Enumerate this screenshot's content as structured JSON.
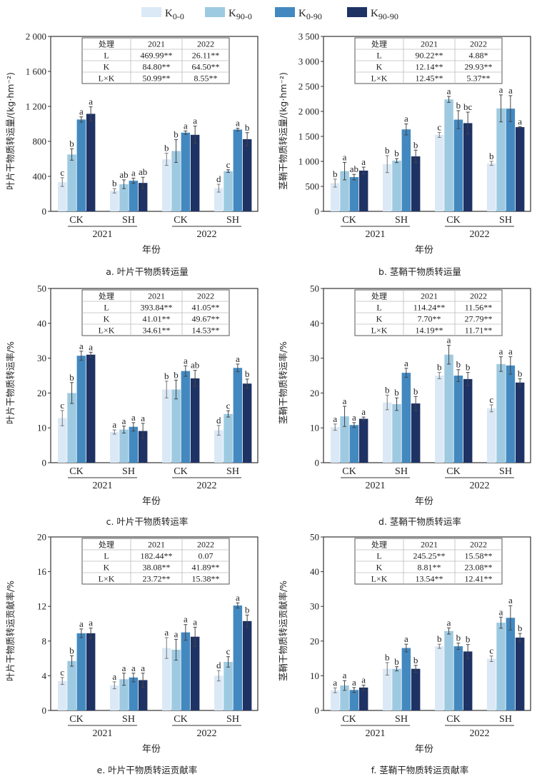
{
  "legend": [
    {
      "label": "K",
      "sub": "0-0",
      "color": "#dbe9f6"
    },
    {
      "label": "K",
      "sub": "90-0",
      "color": "#9ecae1"
    },
    {
      "label": "K",
      "sub": "0-90",
      "color": "#4389c0"
    },
    {
      "label": "K",
      "sub": "90-90",
      "color": "#1e3264"
    }
  ],
  "chart_data": [
    {
      "type": "bar",
      "caption": "a.  叶片干物质转运量",
      "ylabel": "叶片干物质转运量/(kg·hm⁻²)",
      "xlabel": "年份",
      "ylim": [
        0,
        2000
      ],
      "yticks": [
        0,
        400,
        800,
        1200,
        1600,
        2000
      ],
      "ytick_labels": [
        "0",
        "400",
        "800",
        "1 200",
        "1 600",
        "2 000"
      ],
      "groups": [
        {
          "year": "2021",
          "site": "CK"
        },
        {
          "year": "2021",
          "site": "SH"
        },
        {
          "year": "2022",
          "site": "CK"
        },
        {
          "year": "2022",
          "site": "SH"
        }
      ],
      "series": [
        {
          "name": "K0-0",
          "values": [
            335,
            235,
            595,
            265
          ],
          "errors": [
            50,
            25,
            70,
            45
          ],
          "letters": [
            "c",
            "b",
            "b",
            "d"
          ]
        },
        {
          "name": "K90-0",
          "values": [
            650,
            310,
            690,
            460
          ],
          "errors": [
            65,
            50,
            130,
            15
          ],
          "letters": [
            "b",
            "ab",
            "b",
            "c"
          ]
        },
        {
          "name": "K0-90",
          "values": [
            1050,
            350,
            900,
            935
          ],
          "errors": [
            30,
            30,
            20,
            15
          ],
          "letters": [
            "a",
            "a",
            "a",
            "a"
          ]
        },
        {
          "name": "K90-90",
          "values": [
            1115,
            325,
            875,
            825
          ],
          "errors": [
            80,
            65,
            100,
            75
          ],
          "letters": [
            "a",
            "ab",
            "a",
            "b"
          ]
        }
      ],
      "table": {
        "header": [
          "处理",
          "2021",
          "2022"
        ],
        "rows": [
          [
            "L",
            "469.99**",
            "26.11**"
          ],
          [
            "K",
            "84.80**",
            "64.50**"
          ],
          [
            "L×K",
            "50.99**",
            "8.55**"
          ]
        ]
      }
    },
    {
      "type": "bar",
      "caption": "b.  茎鞘干物质转运量",
      "ylabel": "茎鞘干物质转运量/(kg·hm⁻²)",
      "xlabel": "年份",
      "ylim": [
        0,
        3500
      ],
      "yticks": [
        0,
        500,
        1000,
        1500,
        2000,
        2500,
        3000,
        3500
      ],
      "ytick_labels": [
        "0",
        "500",
        "1 000",
        "1 500",
        "2 000",
        "2 500",
        "3 000",
        "3 500"
      ],
      "groups": [
        {
          "year": "2021",
          "site": "CK"
        },
        {
          "year": "2021",
          "site": "SH"
        },
        {
          "year": "2022",
          "site": "CK"
        },
        {
          "year": "2022",
          "site": "SH"
        }
      ],
      "series": [
        {
          "name": "K0-0",
          "values": [
            565,
            945,
            1530,
            960
          ],
          "errors": [
            80,
            170,
            50,
            40
          ],
          "letters": [
            "b",
            "b",
            "c",
            "b"
          ]
        },
        {
          "name": "K90-0",
          "values": [
            805,
            1015,
            2240,
            2060
          ],
          "errors": [
            175,
            40,
            60,
            270
          ],
          "letters": [
            "a",
            "b",
            "a",
            "a"
          ]
        },
        {
          "name": "K0-90",
          "values": [
            685,
            1640,
            1835,
            2055
          ],
          "errors": [
            55,
            110,
            180,
            260
          ],
          "letters": [
            "ab",
            "a",
            "b",
            "a"
          ]
        },
        {
          "name": "K90-90",
          "values": [
            815,
            1100,
            1765,
            1685
          ],
          "errors": [
            70,
            125,
            220,
            10
          ],
          "letters": [
            "a",
            "b",
            "bc",
            "a"
          ]
        }
      ],
      "table": {
        "header": [
          "处理",
          "2021",
          "2022"
        ],
        "rows": [
          [
            "L",
            "90.22**",
            "4.88*"
          ],
          [
            "K",
            "12.14**",
            "29.93**"
          ],
          [
            "L×K",
            "12.45**",
            "5.37**"
          ]
        ]
      }
    },
    {
      "type": "bar",
      "caption": "c.  叶片干物质转运率",
      "ylabel": "叶片干物质转运率/%",
      "xlabel": "年份",
      "ylim": [
        0,
        50
      ],
      "yticks": [
        0,
        10,
        20,
        30,
        40,
        50
      ],
      "ytick_labels": [
        "0",
        "10",
        "20",
        "30",
        "40",
        "50"
      ],
      "groups": [
        {
          "year": "2021",
          "site": "CK"
        },
        {
          "year": "2021",
          "site": "SH"
        },
        {
          "year": "2022",
          "site": "CK"
        },
        {
          "year": "2022",
          "site": "SH"
        }
      ],
      "series": [
        {
          "name": "K0-0",
          "values": [
            12.8,
            8.8,
            21.0,
            9.3
          ],
          "errors": [
            2.2,
            0.6,
            2.4,
            1.4
          ],
          "letters": [
            "c",
            "a",
            "b",
            "d"
          ]
        },
        {
          "name": "K90-0",
          "values": [
            20.0,
            9.5,
            21.0,
            14.0
          ],
          "errors": [
            3.0,
            1.0,
            2.7,
            0.9
          ],
          "letters": [
            "b",
            "a",
            "b",
            "c"
          ]
        },
        {
          "name": "K0-90",
          "values": [
            30.7,
            10.3,
            26.3,
            27.2
          ],
          "errors": [
            1.3,
            1.2,
            1.5,
            1.1
          ],
          "letters": [
            "a",
            "a",
            "a",
            "a"
          ]
        },
        {
          "name": "K90-90",
          "values": [
            31.0,
            9.1,
            24.2,
            22.7
          ],
          "errors": [
            0.7,
            2.2,
            2.3,
            1.3
          ],
          "letters": [
            "a",
            "a",
            "ab",
            "b"
          ]
        }
      ],
      "table": {
        "header": [
          "处理",
          "2021",
          "2022"
        ],
        "rows": [
          [
            "L",
            "393.84**",
            "41.05**"
          ],
          [
            "K",
            "41.01**",
            "49.67**"
          ],
          [
            "L×K",
            "34.61**",
            "14.53**"
          ]
        ]
      }
    },
    {
      "type": "bar",
      "caption": "d.  茎鞘干物质转运率",
      "ylabel": "茎鞘干物质转运率/%",
      "xlabel": "年份",
      "ylim": [
        0,
        50
      ],
      "yticks": [
        0,
        10,
        20,
        30,
        40,
        50
      ],
      "ytick_labels": [
        "0",
        "10",
        "20",
        "30",
        "40",
        "50"
      ],
      "groups": [
        {
          "year": "2021",
          "site": "CK"
        },
        {
          "year": "2021",
          "site": "SH"
        },
        {
          "year": "2022",
          "site": "CK"
        },
        {
          "year": "2022",
          "site": "SH"
        }
      ],
      "series": [
        {
          "name": "K0-0",
          "values": [
            10.2,
            17.3,
            25.0,
            15.6
          ],
          "errors": [
            0.9,
            2.1,
            0.9,
            1.0
          ],
          "letters": [
            "a",
            "b",
            "b",
            "c"
          ]
        },
        {
          "name": "K90-0",
          "values": [
            13.3,
            16.8,
            31.0,
            28.3
          ],
          "errors": [
            2.9,
            1.8,
            2.7,
            2.1
          ],
          "letters": [
            "a",
            "b",
            "a",
            "a"
          ]
        },
        {
          "name": "K0-90",
          "values": [
            10.8,
            25.8,
            25.0,
            27.9
          ],
          "errors": [
            0.7,
            1.3,
            1.7,
            2.5
          ],
          "letters": [
            "a",
            "a",
            "b",
            "a"
          ]
        },
        {
          "name": "K90-90",
          "values": [
            12.6,
            17.0,
            24.0,
            23.0
          ],
          "errors": [
            0.5,
            2.0,
            1.9,
            1.1
          ],
          "letters": [
            "a",
            "b",
            "b",
            "b"
          ]
        }
      ],
      "table": {
        "header": [
          "处理",
          "2021",
          "2022"
        ],
        "rows": [
          [
            "L",
            "114.24**",
            "11.56**"
          ],
          [
            "K",
            "7.70**",
            "27.79**"
          ],
          [
            "L×K",
            "14.19**",
            "11.71**"
          ]
        ]
      }
    },
    {
      "type": "bar",
      "caption": "e.  叶片干物质转运贡献率",
      "ylabel": "叶片干物质转运贡献率/%",
      "xlabel": "年份",
      "ylim": [
        0,
        20
      ],
      "yticks": [
        0,
        4,
        8,
        12,
        16,
        20
      ],
      "ytick_labels": [
        "0",
        "4",
        "8",
        "12",
        "16",
        "20"
      ],
      "groups": [
        {
          "year": "2021",
          "site": "CK"
        },
        {
          "year": "2021",
          "site": "SH"
        },
        {
          "year": "2022",
          "site": "CK"
        },
        {
          "year": "2022",
          "site": "SH"
        }
      ],
      "series": [
        {
          "name": "K0-0",
          "values": [
            3.4,
            2.9,
            7.2,
            4.0
          ],
          "errors": [
            0.4,
            0.4,
            1.2,
            0.6
          ],
          "letters": [
            "c",
            "a",
            "a",
            "d"
          ]
        },
        {
          "name": "K90-0",
          "values": [
            5.7,
            3.6,
            7.0,
            5.6
          ],
          "errors": [
            0.6,
            0.7,
            1.2,
            0.6
          ],
          "letters": [
            "b",
            "a",
            "a",
            "c"
          ]
        },
        {
          "name": "K0-90",
          "values": [
            8.9,
            3.8,
            9.0,
            12.1
          ],
          "errors": [
            0.5,
            0.5,
            0.9,
            0.3
          ],
          "letters": [
            "a",
            "a",
            "a",
            "a"
          ]
        },
        {
          "name": "K90-90",
          "values": [
            8.9,
            3.5,
            8.5,
            10.3
          ],
          "errors": [
            0.6,
            0.8,
            1.1,
            0.7
          ],
          "letters": [
            "a",
            "a",
            "a",
            "b"
          ]
        }
      ],
      "table": {
        "header": [
          "处理",
          "2021",
          "2022"
        ],
        "rows": [
          [
            "L",
            "182.44**",
            "0.07"
          ],
          [
            "K",
            "38.08**",
            "41.89**"
          ],
          [
            "L×K",
            "23.72**",
            "15.38**"
          ]
        ]
      }
    },
    {
      "type": "bar",
      "caption": "f.  茎鞘干物质转运贡献率",
      "ylabel": "茎鞘干物质转运贡献率/%",
      "xlabel": "年份",
      "ylim": [
        0,
        50
      ],
      "yticks": [
        0,
        10,
        20,
        30,
        40,
        50
      ],
      "ytick_labels": [
        "0",
        "10",
        "20",
        "30",
        "40",
        "50"
      ],
      "groups": [
        {
          "year": "2021",
          "site": "CK"
        },
        {
          "year": "2021",
          "site": "SH"
        },
        {
          "year": "2022",
          "site": "CK"
        },
        {
          "year": "2022",
          "site": "SH"
        }
      ],
      "series": [
        {
          "name": "K0-0",
          "values": [
            5.8,
            12.0,
            18.5,
            14.9
          ],
          "errors": [
            0.7,
            1.8,
            0.6,
            0.8
          ],
          "letters": [
            "a",
            "b",
            "b",
            "c"
          ]
        },
        {
          "name": "K90-0",
          "values": [
            7.2,
            12.0,
            22.9,
            25.3
          ],
          "errors": [
            1.4,
            0.6,
            0.9,
            1.6
          ],
          "letters": [
            "a",
            "b",
            "a",
            "a"
          ]
        },
        {
          "name": "K0-90",
          "values": [
            5.9,
            18.0,
            18.5,
            26.7
          ],
          "errors": [
            0.7,
            1.1,
            0.9,
            3.5
          ],
          "letters": [
            "a",
            "a",
            "b",
            "a"
          ]
        },
        {
          "name": "K90-90",
          "values": [
            6.6,
            12.0,
            17.0,
            21.0
          ],
          "errors": [
            0.7,
            1.0,
            2.0,
            1.2
          ],
          "letters": [
            "a",
            "b",
            "b",
            "b"
          ]
        }
      ],
      "table": {
        "header": [
          "处理",
          "2021",
          "2022"
        ],
        "rows": [
          [
            "L",
            "245.25**",
            "15.58**"
          ],
          [
            "K",
            "8.81**",
            "23.08**"
          ],
          [
            "L×K",
            "13.54**",
            "12.41**"
          ]
        ]
      }
    }
  ]
}
